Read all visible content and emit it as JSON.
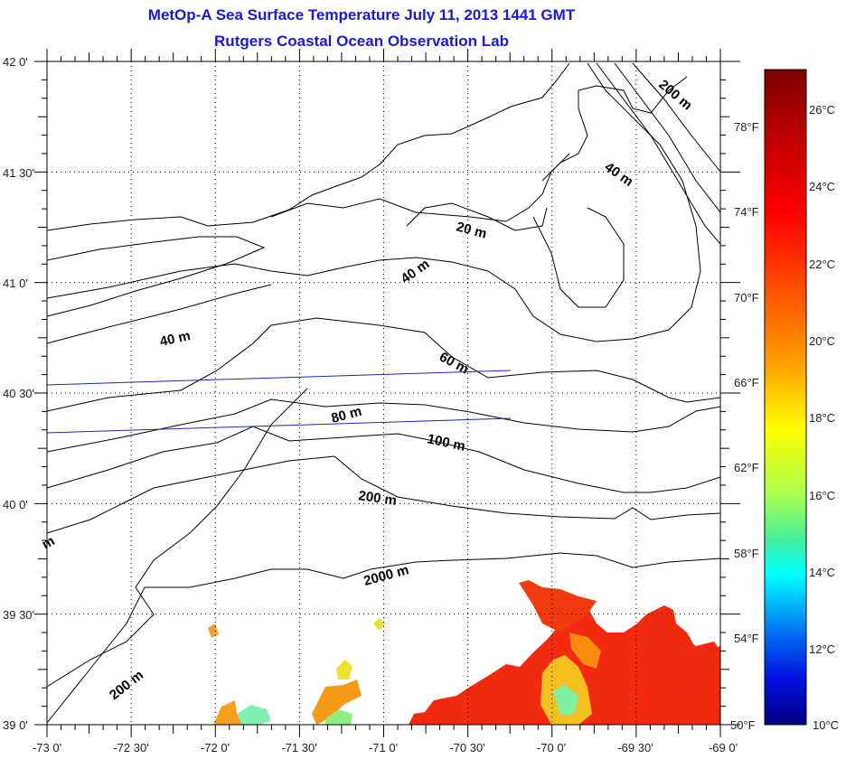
{
  "title": "MetOp-A Sea Surface Temperature July 11, 2013 1441 GMT",
  "subtitle": "Rutgers Coastal Ocean Observation Lab",
  "map": {
    "lon_range": [
      -73,
      -69
    ],
    "lat_range": [
      39,
      42
    ],
    "lon_labels": [
      "-73 0'",
      "-72 30'",
      "-72 0'",
      "-71 30'",
      "-71 0'",
      "-70 30'",
      "-70 0'",
      "-69 30'",
      "-69 0'"
    ],
    "lat_labels": [
      "42 0'",
      "41 30'",
      "41 0'",
      "40 30'",
      "40 0'",
      "39 30'",
      "39 0'"
    ],
    "contour_labels": [
      "200 m",
      "40 m",
      "20 m",
      "40 m",
      "40 m",
      "60 m",
      "80 m",
      "100 m",
      "200 m",
      "2000 m",
      "200 m",
      "m"
    ],
    "track_line_color": "#1a2a9a"
  },
  "colorbar": {
    "celsius_labels": [
      "26°C",
      "24°C",
      "22°C",
      "20°C",
      "18°C",
      "16°C",
      "14°C",
      "12°C",
      "10°C"
    ],
    "fahrenheit_labels": [
      "78°F",
      "74°F",
      "70°F",
      "66°F",
      "62°F",
      "58°F",
      "54°F",
      "50°F"
    ],
    "range_celsius": [
      10,
      27
    ],
    "colors": [
      "#800000",
      "#ff0000",
      "#ff9900",
      "#ffff00",
      "#60f090",
      "#00ffff",
      "#0040ff",
      "#000080"
    ]
  }
}
